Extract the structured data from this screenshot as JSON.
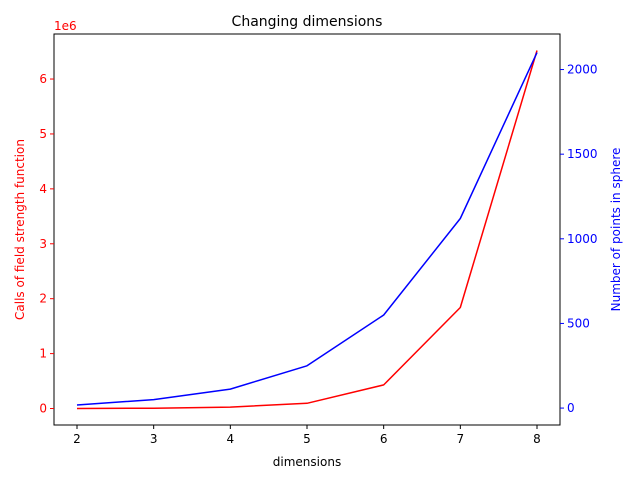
{
  "chart_data": {
    "type": "line",
    "title": "Changing dimensions",
    "xlabel": "dimensions",
    "x": [
      2,
      3,
      4,
      5,
      6,
      7,
      8
    ],
    "xticks": [
      2,
      3,
      4,
      5,
      6,
      7,
      8
    ],
    "xlim": [
      1.7,
      8.3
    ],
    "left_axis": {
      "label": "Calls of field strength function",
      "color": "#ff0000",
      "offset_text": "1e6",
      "multiplier": 1000000,
      "ylim": [
        -300000,
        6820000
      ],
      "ticks": [
        0,
        1000000,
        2000000,
        3000000,
        4000000,
        5000000,
        6000000
      ],
      "tick_labels": [
        "0",
        "1",
        "2",
        "3",
        "4",
        "5",
        "6"
      ]
    },
    "right_axis": {
      "label": "Number of points in sphere",
      "color": "#0000ff",
      "ylim": [
        -100,
        2210
      ],
      "ticks": [
        0,
        500,
        1000,
        1500,
        2000
      ],
      "tick_labels": [
        "0",
        "500",
        "1000",
        "1500",
        "2000"
      ]
    },
    "series": [
      {
        "axis": "left",
        "color": "#ff0000",
        "values": [
          1000,
          6000,
          26000,
          95000,
          430000,
          1840000,
          6520000
        ]
      },
      {
        "axis": "right",
        "color": "#0000ff",
        "values": [
          18,
          50,
          112,
          250,
          550,
          1120,
          2100
        ]
      }
    ],
    "grid": false,
    "legend": "none"
  }
}
